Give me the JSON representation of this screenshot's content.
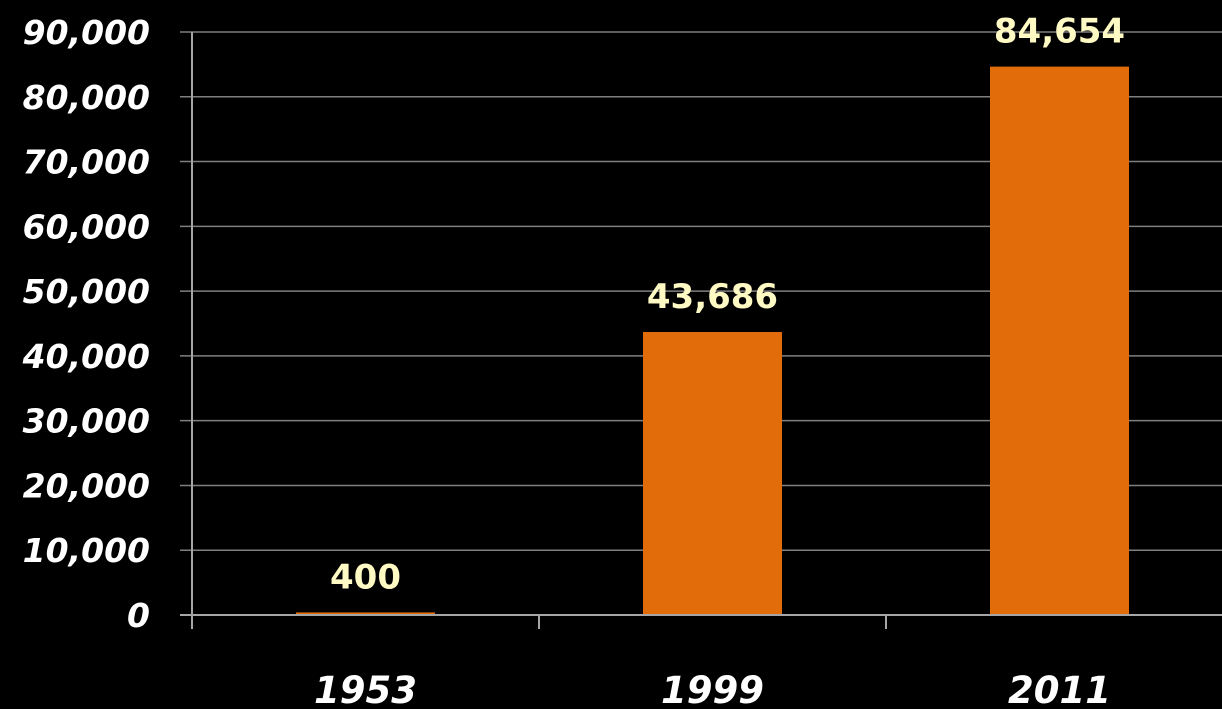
{
  "chart_data": {
    "type": "bar",
    "categories": [
      "1953",
      "1999",
      "2011"
    ],
    "values": [
      400,
      43686,
      84654
    ],
    "data_labels": [
      "400",
      "43,686",
      "84,654"
    ],
    "ylim": [
      0,
      90000
    ],
    "yticks": [
      0,
      10000,
      20000,
      30000,
      40000,
      50000,
      60000,
      70000,
      80000,
      90000
    ],
    "ytick_labels": [
      "0",
      "10,000",
      "20,000",
      "30,000",
      "40,000",
      "50,000",
      "60,000",
      "70,000",
      "80,000",
      "90,000"
    ],
    "grid": true,
    "legend": "none",
    "colors": {
      "background": "#000000",
      "bar": "#e36c0a",
      "gridline": "#7f7f7f",
      "axis": "#a6a6a6",
      "tick_label": "#ffffff",
      "data_label": "#fff9c4"
    }
  }
}
